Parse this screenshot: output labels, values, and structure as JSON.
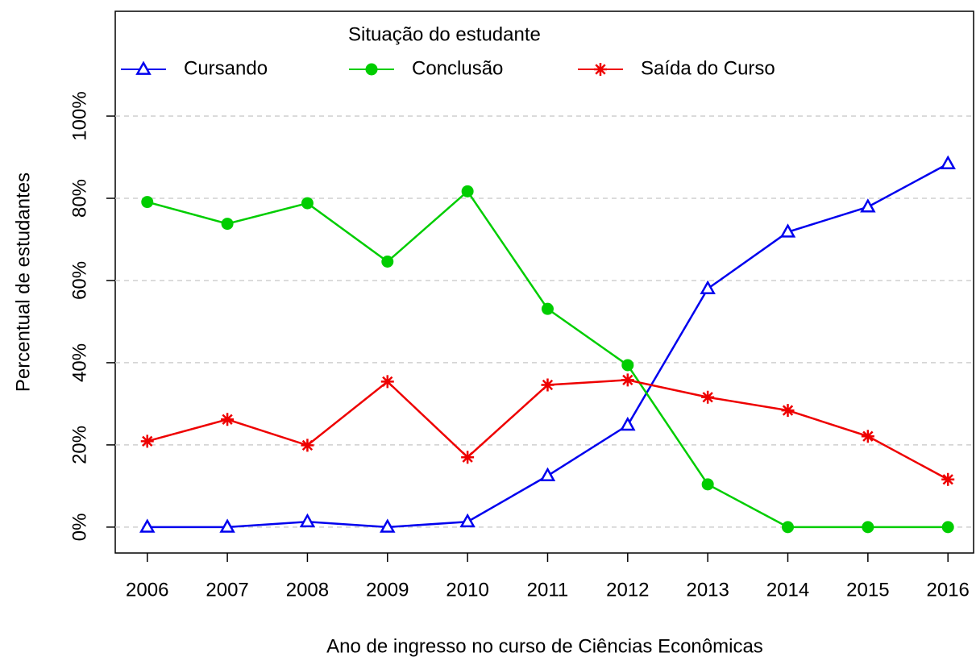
{
  "chart_data": {
    "type": "line",
    "x_label": "Ano de ingresso no curso de Ciências Econômicas",
    "y_label": "Percentual de estudantes",
    "legend_title": "Situação do estudante",
    "legend": "top",
    "grid": true,
    "x": [
      2006,
      2007,
      2008,
      2009,
      2010,
      2011,
      2012,
      2013,
      2014,
      2015,
      2016
    ],
    "series": [
      {
        "name": "Cursando",
        "color": "#0000ee",
        "marker": "triangle",
        "values": [
          0,
          0,
          1.3,
          0,
          1.3,
          12.5,
          24.8,
          58,
          71.8,
          77.9,
          88.4
        ]
      },
      {
        "name": "Conclusão",
        "color": "#00cd00",
        "marker": "circle",
        "values": [
          79.1,
          73.8,
          78.8,
          64.6,
          81.7,
          53.1,
          39.4,
          10.4,
          0,
          0,
          0
        ]
      },
      {
        "name": "Saída do Curso",
        "color": "#ee0000",
        "marker": "asterisk",
        "values": [
          20.9,
          26.2,
          19.9,
          35.4,
          17,
          34.6,
          35.8,
          31.6,
          28.4,
          22.1,
          11.6
        ]
      }
    ],
    "xlim": [
      2005.6,
      2016.32
    ],
    "xticks": [
      2006,
      2007,
      2008,
      2009,
      2010,
      2011,
      2012,
      2013,
      2014,
      2015,
      2016
    ],
    "ylim": [
      -6.3,
      125.5
    ],
    "yticks": [
      {
        "value": 0,
        "label": "0%"
      },
      {
        "value": 20,
        "label": "20%"
      },
      {
        "value": 40,
        "label": "40%"
      },
      {
        "value": 60,
        "label": "60%"
      },
      {
        "value": 80,
        "label": "80%"
      },
      {
        "value": 100,
        "label": "100%"
      }
    ]
  }
}
